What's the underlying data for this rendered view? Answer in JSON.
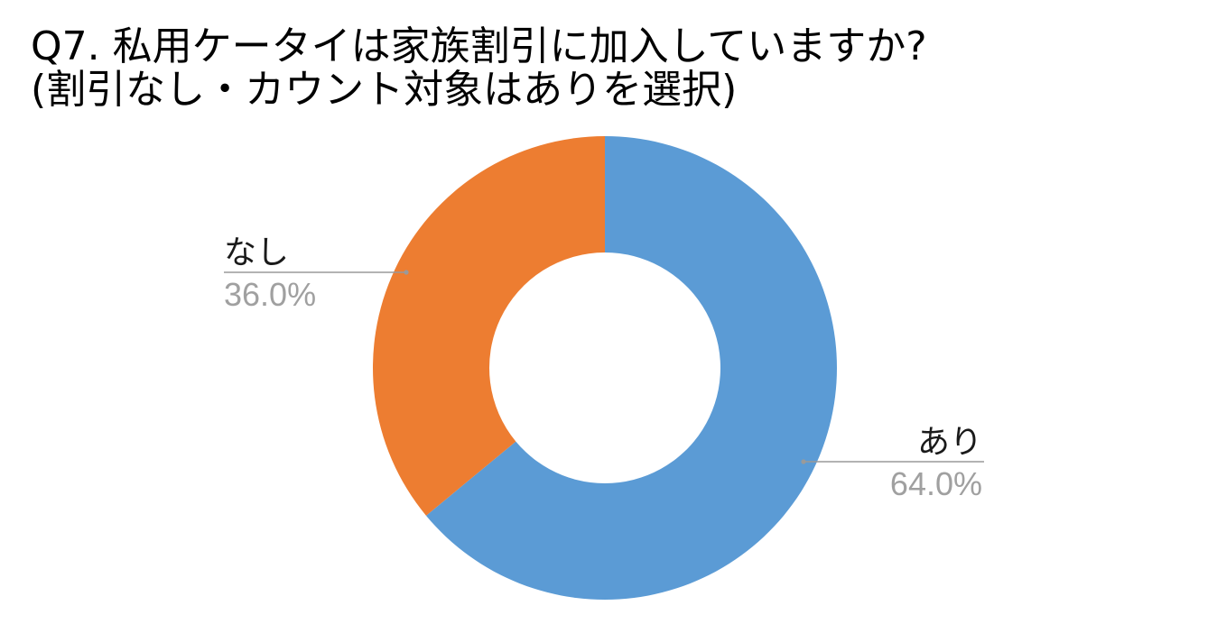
{
  "chart_data": {
    "type": "pie",
    "variant": "donut",
    "title": "Q7. 私用ケータイは家族割引に加入していますか?",
    "subtitle": "(割引なし・カウント対象はありを選択)",
    "categories": [
      "あり",
      "なし"
    ],
    "values": [
      64.0,
      36.0
    ],
    "value_labels": [
      "64.0%",
      "36.0%"
    ],
    "colors": [
      "#5b9bd5",
      "#ed7d31"
    ],
    "start_angle_deg": 0,
    "direction": "clockwise",
    "legend": "none",
    "label_style": "callout-lines"
  }
}
